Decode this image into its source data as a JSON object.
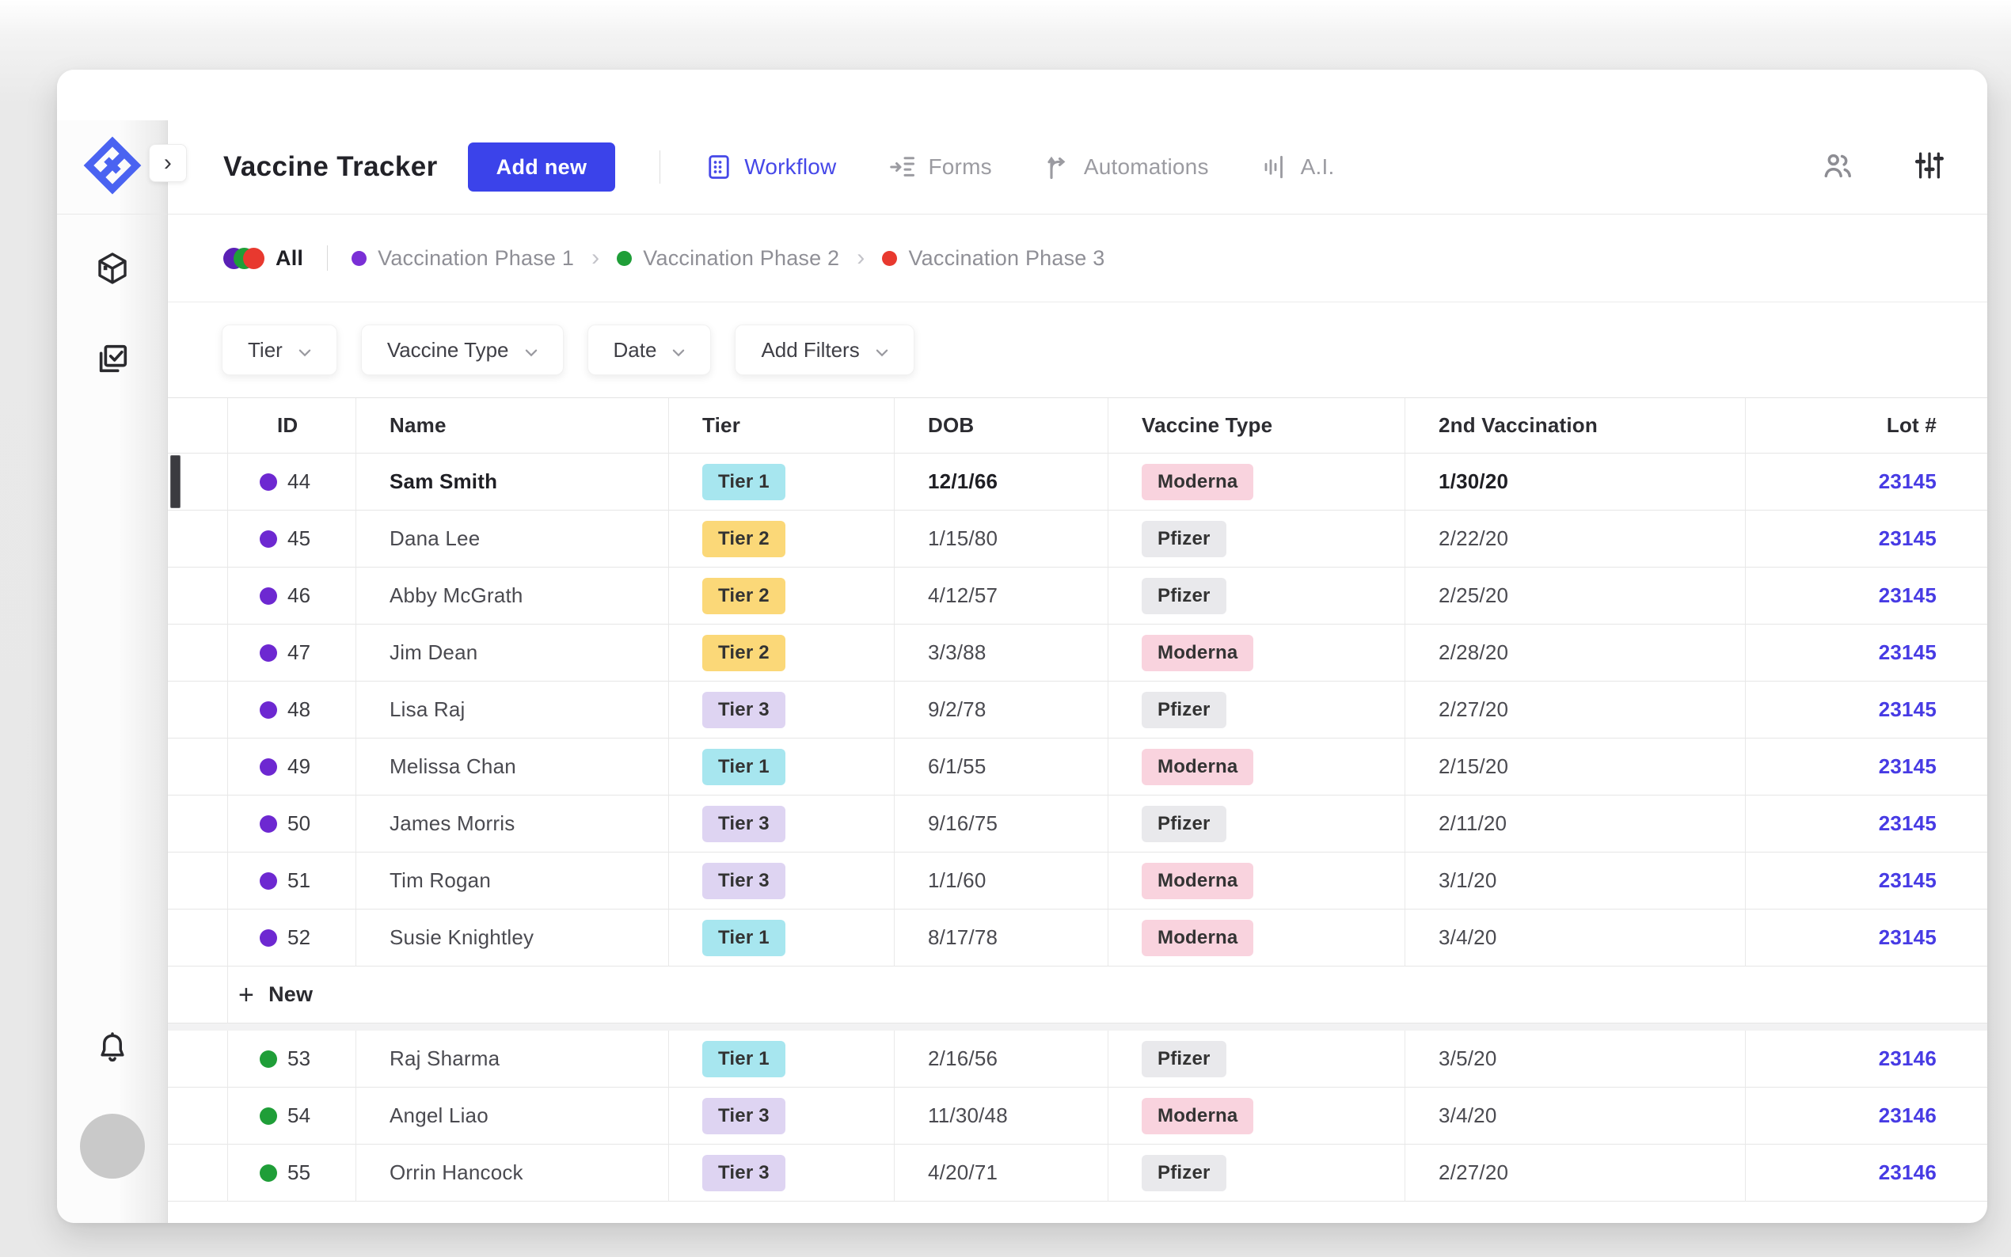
{
  "header": {
    "title": "Vaccine Tracker",
    "add_new_label": "Add new",
    "nav": [
      {
        "label": "Workflow",
        "icon": "workflow-icon",
        "active": true
      },
      {
        "label": "Forms",
        "icon": "forms-icon",
        "active": false
      },
      {
        "label": "Automations",
        "icon": "automations-icon",
        "active": false
      },
      {
        "label": "A.I.",
        "icon": "ai-bars-icon",
        "active": false
      }
    ]
  },
  "phase_bar": {
    "all_label": "All",
    "all_dot_colors": [
      "#5a20b5",
      "#1f9e38",
      "#e8392f"
    ],
    "phases": [
      {
        "label": "Vaccination Phase 1",
        "color": "#7a2fd6"
      },
      {
        "label": "Vaccination Phase 2",
        "color": "#1f9e38"
      },
      {
        "label": "Vaccination Phase 3",
        "color": "#e8392f"
      }
    ]
  },
  "filters": [
    {
      "label": "Tier"
    },
    {
      "label": "Vaccine Type"
    },
    {
      "label": "Date"
    },
    {
      "label": "Add Filters"
    }
  ],
  "table": {
    "columns": [
      "ID",
      "Name",
      "Tier",
      "DOB",
      "Vaccine Type",
      "2nd Vaccination",
      "Lot #"
    ],
    "new_row_label": "New",
    "groups": [
      {
        "dot_color": "#6d28d1",
        "has_new_row": true,
        "rows": [
          {
            "id": "44",
            "name": "Sam Smith",
            "tier": "Tier 1",
            "dob": "12/1/66",
            "vaccine": "Moderna",
            "second": "1/30/20",
            "lot": "23145",
            "bold": true,
            "selected": true
          },
          {
            "id": "45",
            "name": "Dana Lee",
            "tier": "Tier 2",
            "dob": "1/15/80",
            "vaccine": "Pfizer",
            "second": "2/22/20",
            "lot": "23145"
          },
          {
            "id": "46",
            "name": "Abby McGrath",
            "tier": "Tier 2",
            "dob": "4/12/57",
            "vaccine": "Pfizer",
            "second": "2/25/20",
            "lot": "23145"
          },
          {
            "id": "47",
            "name": "Jim Dean",
            "tier": "Tier 2",
            "dob": "3/3/88",
            "vaccine": "Moderna",
            "second": "2/28/20",
            "lot": "23145"
          },
          {
            "id": "48",
            "name": "Lisa Raj",
            "tier": "Tier 3",
            "dob": "9/2/78",
            "vaccine": "Pfizer",
            "second": "2/27/20",
            "lot": "23145"
          },
          {
            "id": "49",
            "name": "Melissa Chan",
            "tier": "Tier 1",
            "dob": "6/1/55",
            "vaccine": "Moderna",
            "second": "2/15/20",
            "lot": "23145"
          },
          {
            "id": "50",
            "name": "James Morris",
            "tier": "Tier 3",
            "dob": "9/16/75",
            "vaccine": "Pfizer",
            "second": "2/11/20",
            "lot": "23145"
          },
          {
            "id": "51",
            "name": "Tim Rogan",
            "tier": "Tier 3",
            "dob": "1/1/60",
            "vaccine": "Moderna",
            "second": "3/1/20",
            "lot": "23145"
          },
          {
            "id": "52",
            "name": "Susie Knightley",
            "tier": "Tier 1",
            "dob": "8/17/78",
            "vaccine": "Moderna",
            "second": "3/4/20",
            "lot": "23145"
          }
        ]
      },
      {
        "dot_color": "#1f9e38",
        "has_new_row": false,
        "rows": [
          {
            "id": "53",
            "name": "Raj Sharma",
            "tier": "Tier 1",
            "dob": "2/16/56",
            "vaccine": "Pfizer",
            "second": "3/5/20",
            "lot": "23146"
          },
          {
            "id": "54",
            "name": "Angel Liao",
            "tier": "Tier 3",
            "dob": "11/30/48",
            "vaccine": "Moderna",
            "second": "3/4/20",
            "lot": "23146"
          },
          {
            "id": "55",
            "name": "Orrin Hancock",
            "tier": "Tier 3",
            "dob": "4/20/71",
            "vaccine": "Pfizer",
            "second": "2/27/20",
            "lot": "23146"
          }
        ]
      }
    ]
  },
  "colors": {
    "accent": "#3b43ea",
    "workflow_active": "#4648e8",
    "logo_blue": "#4a63f1",
    "lot_link": "#473be4",
    "tier_1_bg": "#a7e6ef",
    "tier_2_bg": "#fbd878",
    "tier_3_bg": "#ded4f2",
    "moderna_bg": "#f9d3de",
    "pfizer_bg": "#e9e9ec"
  }
}
